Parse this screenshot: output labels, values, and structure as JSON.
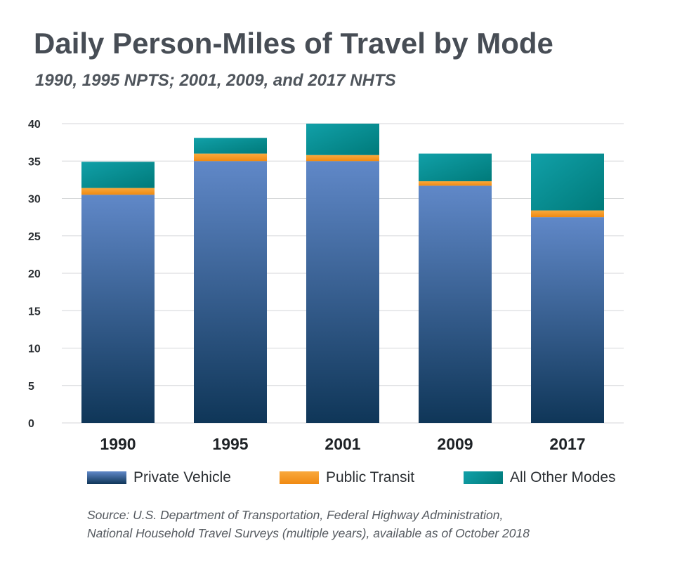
{
  "chart_data": {
    "type": "bar",
    "stacked": true,
    "title": "Daily Person-Miles of Travel by Mode",
    "subtitle": "1990, 1995 NPTS; 2001, 2009, and 2017 NHTS",
    "categories": [
      "1990",
      "1995",
      "2001",
      "2009",
      "2017"
    ],
    "series": [
      {
        "name": "Private Vehicle",
        "values": [
          30.5,
          35.0,
          35.0,
          31.7,
          27.5
        ]
      },
      {
        "name": "Public Transit",
        "values": [
          0.9,
          1.0,
          0.8,
          0.6,
          0.9
        ]
      },
      {
        "name": "All Other Modes",
        "values": [
          3.5,
          2.1,
          4.2,
          3.7,
          7.6
        ]
      }
    ],
    "ylim": [
      0,
      40
    ],
    "yticks": [
      0,
      5,
      10,
      15,
      20,
      25,
      30,
      35,
      40
    ],
    "grid": true,
    "legend_position": "bottom"
  },
  "colors": {
    "private_vehicle": [
      "#6088c8",
      "#0f3658"
    ],
    "public_transit": [
      "#f9a93d",
      "#f08a12"
    ],
    "all_other_modes": [
      "#11a0a8",
      "#007a7a"
    ]
  },
  "source": {
    "line1": "Source: U.S. Department of Transportation, Federal Highway Administration,",
    "line2": "National Household Travel Surveys (multiple years), available as of October 2018"
  }
}
